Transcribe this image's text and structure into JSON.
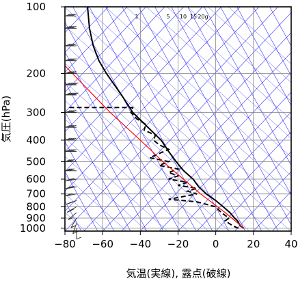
{
  "chart_data": {
    "type": "line",
    "title": "",
    "xlabel": "気温(実線), 露点(破線)",
    "ylabel": "気圧(hPa)",
    "xlim": [
      -80,
      40
    ],
    "ylim": [
      1030,
      100
    ],
    "y_scale": "log",
    "x_ticks": [
      "−80",
      "−60",
      "−40",
      "−20",
      "0",
      "20",
      "40"
    ],
    "y_ticks": [
      "100",
      "200",
      "300",
      "400",
      "500",
      "600",
      "700",
      "800",
      "900",
      "1000"
    ],
    "mixing_ratio_labels": [
      "1",
      "5",
      "10",
      "15",
      "20g"
    ],
    "grid": true,
    "colors": {
      "isotherm": "#0000ff",
      "adiabat": "#0000ff",
      "parcel": "#ff0000",
      "profile": "#000000",
      "grid": "#808080"
    },
    "series": [
      {
        "style": "solid",
        "pressure": [
          1000,
          975,
          925,
          900,
          850,
          800,
          750,
          700,
          650,
          600,
          550,
          500,
          450,
          400,
          350,
          300,
          250,
          200,
          175,
          150,
          125,
          100
        ],
        "temperature": [
          15,
          13,
          11.5,
          10,
          7.5,
          4,
          0,
          -5,
          -9,
          -12,
          -17,
          -21,
          -25,
          -29,
          -36,
          -44,
          -50,
          -58,
          -62,
          -65,
          -67,
          -68
        ]
      },
      {
        "style": "dashed",
        "pressure": [
          1000,
          975,
          925,
          900,
          850,
          800,
          760,
          740,
          700,
          680,
          660,
          640,
          620,
          600,
          580,
          560,
          540,
          520,
          500,
          480,
          460,
          440,
          420,
          400,
          380,
          360,
          340,
          320,
          300,
          285,
          285
        ],
        "temperature": [
          12,
          9,
          5,
          7,
          3,
          0,
          -10,
          -25,
          -10,
          -15,
          -10,
          -20,
          -15,
          -25,
          -20,
          -25,
          -20,
          -30,
          -25,
          -35,
          -30,
          -25,
          -30,
          -33,
          -32,
          -38,
          -37,
          -42,
          -45,
          -44,
          -78
        ]
      },
      {
        "style": "parcel",
        "pressure": [
          1000,
          850,
          700,
          500,
          400,
          300,
          250,
          200,
          150
        ],
        "temperature": [
          15,
          5,
          -8,
          -28,
          -40,
          -56,
          -65,
          -76,
          -90
        ]
      }
    ],
    "wind_barbs": {
      "pressure": [
        1000,
        950,
        900,
        850,
        800,
        750,
        700,
        650,
        600,
        550,
        500,
        450,
        400,
        350,
        300,
        250,
        225,
        200,
        175,
        150,
        125,
        110
      ],
      "speed_kt": [
        5,
        5,
        10,
        10,
        15,
        20,
        20,
        25,
        25,
        30,
        30,
        35,
        35,
        40,
        40,
        45,
        45,
        40,
        40,
        40,
        35,
        35
      ],
      "direction_deg": [
        180,
        200,
        210,
        230,
        240,
        250,
        260,
        260,
        260,
        270,
        270,
        270,
        270,
        270,
        270,
        270,
        270,
        270,
        270,
        270,
        270,
        270
      ]
    }
  }
}
